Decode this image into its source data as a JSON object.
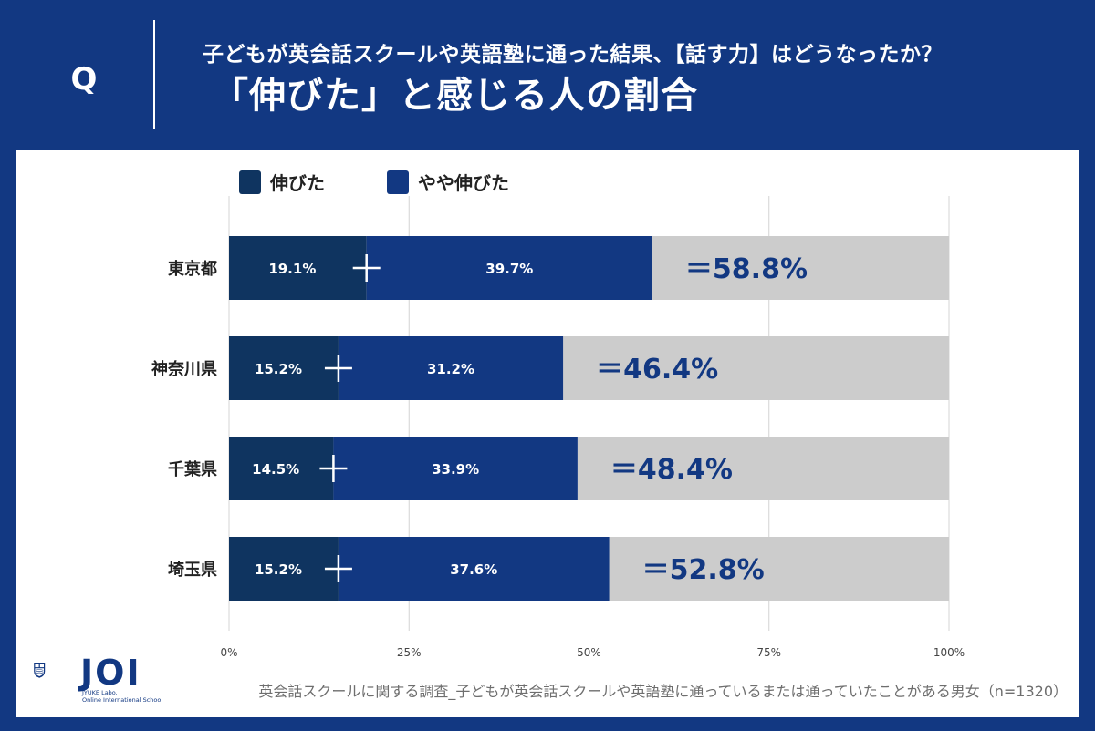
{
  "header": {
    "q_mark": "Q",
    "subtitle": "子どもが英会話スクールや英語塾に通った結果、【話す力】はどうなったか？",
    "title": "「伸びた」と感じる人の割合"
  },
  "footer": {
    "note": "英会話スクールに関する調査_子どもが英会話スクールや英語塾に通っているまたは通っていたことがある男女（n=1320）"
  },
  "logo": {
    "name": "JOI",
    "line1": "JYUKE Labo.",
    "line2": "Online International School"
  },
  "colors": {
    "series1": "#0f3460",
    "series2": "#123882",
    "remainder": "#cccccc",
    "total_text": "#123882"
  },
  "chart_data": {
    "type": "bar",
    "orientation": "horizontal",
    "stacked": true,
    "categories": [
      "東京都",
      "神奈川県",
      "千葉県",
      "埼玉県"
    ],
    "series": [
      {
        "name": "伸びた",
        "values": [
          19.1,
          15.2,
          14.5,
          15.2
        ],
        "labels": [
          "19.1%",
          "15.2%",
          "14.5%",
          "15.2%"
        ]
      },
      {
        "name": "やや伸びた",
        "values": [
          39.7,
          31.2,
          33.9,
          37.6
        ],
        "labels": [
          "39.7%",
          "31.2%",
          "33.9%",
          "37.6%"
        ]
      }
    ],
    "totals": [
      58.8,
      46.4,
      48.4,
      52.8
    ],
    "total_labels": [
      "＝58.8%",
      "＝46.4%",
      "＝48.4%",
      "＝52.8%"
    ],
    "xlim": [
      0,
      100
    ],
    "xticks": [
      "0%",
      "25%",
      "50%",
      "75%",
      "100%"
    ],
    "grid": true,
    "legend_position": "top-left"
  }
}
